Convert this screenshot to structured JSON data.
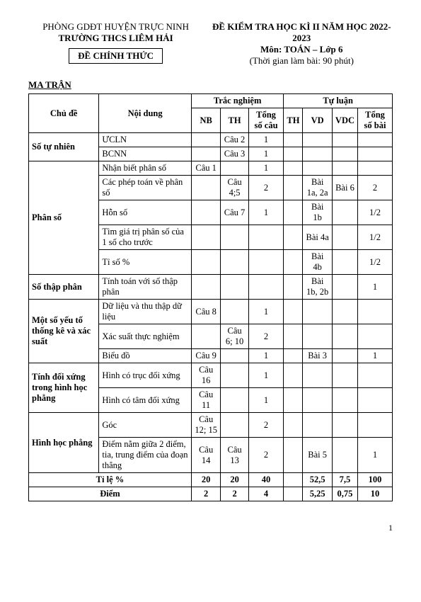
{
  "header": {
    "left_line1": "PHÒNG GDĐT HUYỆN TRỰC NINH",
    "left_line2": "TRƯỜNG THCS LIÊM HẢI",
    "box_label": "ĐỀ CHÍNH THỨC",
    "right_line1": "ĐỀ KIỂM TRA HỌC KÌ II NĂM HỌC 2022-2023",
    "right_line2": "Môn: TOÁN – Lớp 6",
    "right_line3": "(Thời gian làm bài: 90 phút)"
  },
  "section_title": "MA TRẬN",
  "table_headers": {
    "chu_de": "Chủ đề",
    "noi_dung": "Nội dung",
    "trac_nghiem": "Trắc nghiệm",
    "tu_luan": "Tự luận",
    "nb": "NB",
    "th1": "TH",
    "tong_cau": "Tổng số câu",
    "th2": "TH",
    "vd": "VD",
    "vdc": "VDC",
    "tong_bai": "Tổng số bài"
  },
  "rows": [
    {
      "chu_de": "Số tự nhiên",
      "rowspan": 2,
      "sub": [
        {
          "noi_dung": "ƯCLN",
          "nb": "",
          "th1": "Câu 2",
          "tong_cau": "1",
          "th2": "",
          "vd": "",
          "vdc": "",
          "tong_bai": ""
        },
        {
          "noi_dung": "BCNN",
          "nb": "",
          "th1": "Câu 3",
          "tong_cau": "1",
          "th2": "",
          "vd": "",
          "vdc": "",
          "tong_bai": ""
        }
      ]
    },
    {
      "chu_de": "Phân số",
      "rowspan": 5,
      "sub": [
        {
          "noi_dung": "Nhận biết phân số",
          "nb": "Câu 1",
          "th1": "",
          "tong_cau": "1",
          "th2": "",
          "vd": "",
          "vdc": "",
          "tong_bai": ""
        },
        {
          "noi_dung": "Các phép toán về phân số",
          "nb": "",
          "th1": "Câu 4;5",
          "tong_cau": "2",
          "th2": "",
          "vd": "Bài 1a, 2a",
          "vdc": "Bài 6",
          "tong_bai": "2"
        },
        {
          "noi_dung": "Hỗn số",
          "nb": "",
          "th1": "Câu 7",
          "tong_cau": "1",
          "th2": "",
          "vd": "Bài 1b",
          "vdc": "",
          "tong_bai": "1/2"
        },
        {
          "noi_dung": "Tìm giá trị phân số của 1 số cho trước",
          "nb": "",
          "th1": "",
          "tong_cau": "",
          "th2": "",
          "vd": "Bài 4a",
          "vdc": "",
          "tong_bai": "1/2"
        },
        {
          "noi_dung": "Tỉ số %",
          "nb": "",
          "th1": "",
          "tong_cau": "",
          "th2": "",
          "vd": "Bài 4b",
          "vdc": "",
          "tong_bai": "1/2"
        }
      ]
    },
    {
      "chu_de": "Số thập phân",
      "rowspan": 1,
      "sub": [
        {
          "noi_dung": "Tính toán với số thập phân",
          "nb": "",
          "th1": "",
          "tong_cau": "",
          "th2": "",
          "vd": "Bài 1b, 2b",
          "vdc": "",
          "tong_bai": "1"
        }
      ]
    },
    {
      "chu_de": "Một số yếu tố thống kê và xác suất",
      "rowspan": 3,
      "sub": [
        {
          "noi_dung": "Dữ liệu và thu thập dữ liệu",
          "nb": "Câu  8",
          "th1": "",
          "tong_cau": "1",
          "th2": "",
          "vd": "",
          "vdc": "",
          "tong_bai": ""
        },
        {
          "noi_dung": "Xác suất thực nghiệm",
          "nb": "",
          "th1": "Câu 6; 10",
          "tong_cau": "2",
          "th2": "",
          "vd": "",
          "vdc": "",
          "tong_bai": ""
        },
        {
          "noi_dung": "Biểu đồ",
          "nb": "Câu 9",
          "th1": "",
          "tong_cau": "1",
          "th2": "",
          "vd": "Bài 3",
          "vdc": "",
          "tong_bai": "1"
        }
      ]
    },
    {
      "chu_de": "Tính đối xứng trong hình học phẳng",
      "rowspan": 2,
      "sub": [
        {
          "noi_dung": "Hình có trục đối xứng",
          "nb": "Câu 16",
          "th1": "",
          "tong_cau": "1",
          "th2": "",
          "vd": "",
          "vdc": "",
          "tong_bai": ""
        },
        {
          "noi_dung": "Hình có tâm đối xứng",
          "nb": "Câu 11",
          "th1": "",
          "tong_cau": "1",
          "th2": "",
          "vd": "",
          "vdc": "",
          "tong_bai": ""
        }
      ]
    },
    {
      "chu_de": "Hình học phẳng",
      "rowspan": 2,
      "sub": [
        {
          "noi_dung": "Góc",
          "nb": "Câu 12; 15",
          "th1": "",
          "tong_cau": "2",
          "th2": "",
          "vd": "",
          "vdc": "",
          "tong_bai": ""
        },
        {
          "noi_dung": "Điểm nằm giữa 2 điểm, tia, trung điểm của đoạn thẳng",
          "nb": "Câu 14",
          "th1": "Câu 13",
          "tong_cau": "2",
          "th2": "",
          "vd": "Bài 5",
          "vdc": "",
          "tong_bai": "1"
        }
      ]
    }
  ],
  "footer_rows": [
    {
      "label": "Tỉ lệ %",
      "nb": "20",
      "th1": "20",
      "tong_cau": "40",
      "th2": "",
      "vd": "52,5",
      "vdc": "7,5",
      "tong_bai": "100"
    },
    {
      "label": "Điểm",
      "nb": "2",
      "th1": "2",
      "tong_cau": "4",
      "th2": "",
      "vd": "5,25",
      "vdc": "0,75",
      "tong_bai": "10"
    }
  ],
  "page_number": "1"
}
